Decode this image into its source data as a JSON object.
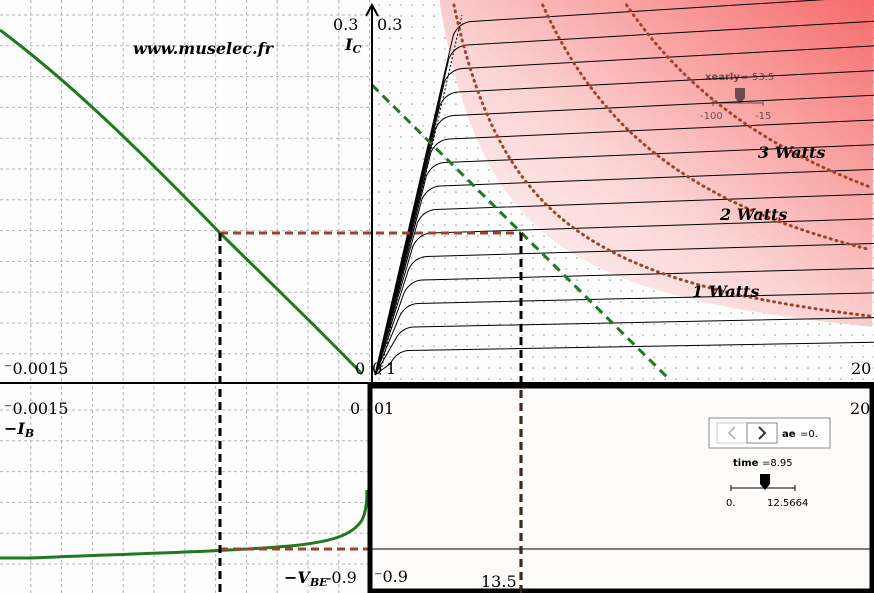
{
  "top_left": {
    "watermark": "www.muselec.fr",
    "y_max": "0.3",
    "y_label": "I",
    "y_label_sub": "C",
    "x_min": "⁻0.0015",
    "x_max": "0"
  },
  "top_right": {
    "y_max": "0.3",
    "x_origin": "0",
    "x_min": "1",
    "x_max": "20",
    "power_labels": [
      "3 Watts",
      "2 Watts",
      "1 Watts"
    ],
    "slider": {
      "name": "xearly",
      "value": "=-53.5",
      "min": "-100",
      "max": "-15"
    }
  },
  "bottom_left": {
    "x_min": "⁻0.0015",
    "x_max": "0",
    "x_label": "−I",
    "x_label_sub": "B",
    "y_label": "−V",
    "y_label_sub": "BE",
    "y_min": "-0.9"
  },
  "bottom_right": {
    "x_origin": "0",
    "x_min": "1",
    "x_max": "20",
    "y_min": "⁻0.9",
    "marker": "13.5",
    "controls": {
      "name": "ae",
      "value": "=0.",
      "slider": {
        "name": "time",
        "value": "=8.95",
        "min": "0.",
        "max": "12.5664"
      }
    }
  }
}
